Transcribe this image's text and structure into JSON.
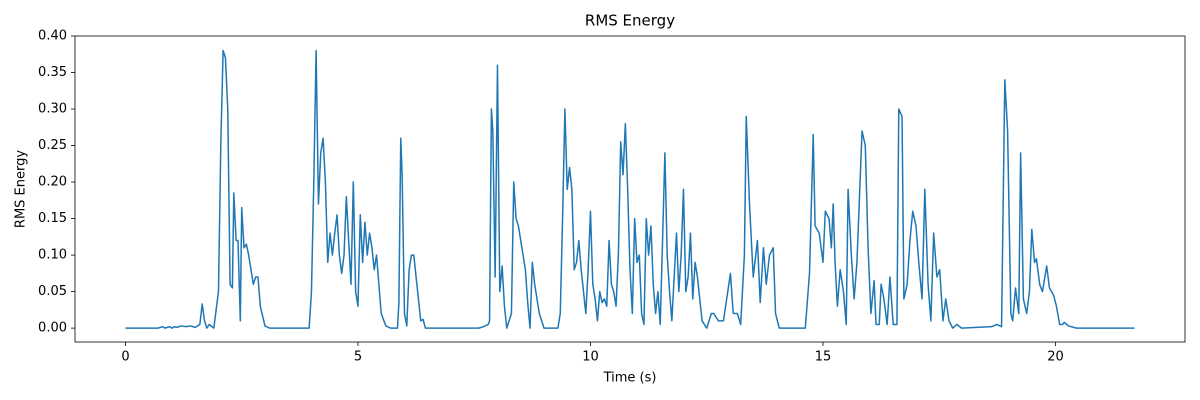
{
  "chart_data": {
    "type": "line",
    "title": "RMS Energy",
    "xlabel": "Time (s)",
    "ylabel": "RMS Energy",
    "color": "#1f77b4",
    "x": [
      0,
      0.7,
      0.8,
      0.85,
      0.95,
      1.0,
      1.05,
      1.1,
      1.2,
      1.3,
      1.4,
      1.5,
      1.6,
      1.65,
      1.7,
      1.75,
      1.8,
      1.9,
      2.0,
      2.05,
      2.1,
      2.15,
      2.2,
      2.25,
      2.3,
      2.33,
      2.38,
      2.42,
      2.47,
      2.5,
      2.55,
      2.6,
      2.65,
      2.7,
      2.75,
      2.8,
      2.85,
      2.9,
      3.0,
      3.1,
      3.95,
      4.0,
      4.05,
      4.1,
      4.15,
      4.2,
      4.25,
      4.3,
      4.35,
      4.4,
      4.45,
      4.5,
      4.55,
      4.6,
      4.65,
      4.7,
      4.75,
      4.8,
      4.85,
      4.9,
      4.95,
      5.0,
      5.05,
      5.1,
      5.15,
      5.2,
      5.25,
      5.3,
      5.35,
      5.4,
      5.45,
      5.5,
      5.6,
      5.7,
      5.85,
      5.88,
      5.92,
      5.95,
      6.0,
      6.05,
      6.1,
      6.15,
      6.2,
      6.25,
      6.3,
      6.35,
      6.4,
      6.45,
      7.6,
      7.7,
      7.8,
      7.83,
      7.87,
      7.9,
      7.95,
      8.0,
      8.05,
      8.1,
      8.15,
      8.2,
      8.3,
      8.35,
      8.4,
      8.45,
      8.5,
      8.55,
      8.6,
      8.65,
      8.7,
      8.75,
      8.8,
      8.9,
      9.0,
      9.3,
      9.35,
      9.4,
      9.45,
      9.5,
      9.55,
      9.6,
      9.65,
      9.7,
      9.75,
      9.8,
      9.85,
      9.9,
      9.95,
      10.0,
      10.05,
      10.1,
      10.15,
      10.2,
      10.25,
      10.3,
      10.35,
      10.4,
      10.45,
      10.5,
      10.55,
      10.6,
      10.65,
      10.7,
      10.75,
      10.8,
      10.85,
      10.9,
      10.95,
      11.0,
      11.05,
      11.1,
      11.15,
      11.2,
      11.25,
      11.3,
      11.35,
      11.4,
      11.45,
      11.5,
      11.55,
      11.6,
      11.65,
      11.7,
      11.75,
      11.8,
      11.85,
      11.9,
      11.95,
      12.0,
      12.05,
      12.1,
      12.15,
      12.2,
      12.25,
      12.3,
      12.35,
      12.4,
      12.5,
      12.6,
      12.65,
      12.75,
      12.86,
      13.01,
      13.07,
      13.16,
      13.23,
      13.31,
      13.35,
      13.42,
      13.5,
      13.59,
      13.65,
      13.72,
      13.78,
      13.85,
      13.93,
      13.98,
      14.06,
      14.62,
      14.71,
      14.79,
      14.83,
      14.92,
      15.0,
      15.05,
      15.13,
      15.18,
      15.22,
      15.26,
      15.31,
      15.37,
      15.44,
      15.5,
      15.54,
      15.61,
      15.67,
      15.73,
      15.84,
      15.91,
      15.97,
      16.03,
      16.1,
      16.14,
      16.21,
      16.25,
      16.31,
      16.38,
      16.44,
      16.51,
      16.59,
      16.63,
      16.7,
      16.74,
      16.81,
      16.87,
      16.93,
      17.0,
      17.06,
      17.13,
      17.19,
      17.26,
      17.32,
      17.38,
      17.45,
      17.51,
      17.58,
      17.64,
      17.71,
      17.79,
      17.88,
      17.98,
      18.63,
      18.74,
      18.84,
      18.91,
      18.97,
      19.04,
      19.08,
      19.14,
      19.21,
      19.25,
      19.31,
      19.38,
      19.44,
      19.49,
      19.55,
      19.59,
      19.66,
      19.72,
      19.81,
      19.87,
      19.96,
      20.02,
      20.09,
      20.15,
      20.19,
      20.28,
      20.45,
      21.7
    ],
    "values": [
      0,
      0,
      0.002,
      0,
      0.002,
      0,
      0.002,
      0.001,
      0.003,
      0.002,
      0.003,
      0.001,
      0.005,
      0.033,
      0.01,
      0,
      0.005,
      0,
      0.05,
      0.25,
      0.38,
      0.37,
      0.3,
      0.06,
      0.055,
      0.185,
      0.12,
      0.12,
      0.01,
      0.165,
      0.11,
      0.115,
      0.1,
      0.08,
      0.06,
      0.07,
      0.07,
      0.03,
      0.003,
      0,
      0,
      0.05,
      0.2,
      0.38,
      0.17,
      0.24,
      0.26,
      0.2,
      0.09,
      0.13,
      0.1,
      0.13,
      0.155,
      0.1,
      0.075,
      0.1,
      0.18,
      0.12,
      0.06,
      0.2,
      0.05,
      0.03,
      0.155,
      0.09,
      0.145,
      0.1,
      0.13,
      0.11,
      0.08,
      0.1,
      0.06,
      0.02,
      0.003,
      0,
      0,
      0.035,
      0.26,
      0.21,
      0.02,
      0.003,
      0.08,
      0.1,
      0.1,
      0.07,
      0.04,
      0.01,
      0.012,
      0,
      0,
      0.002,
      0.005,
      0.01,
      0.3,
      0.27,
      0.07,
      0.36,
      0.05,
      0.085,
      0.03,
      0,
      0.02,
      0.2,
      0.15,
      0.14,
      0.12,
      0.1,
      0.08,
      0.035,
      0,
      0.09,
      0.06,
      0.02,
      0,
      0,
      0.02,
      0.15,
      0.3,
      0.19,
      0.22,
      0.19,
      0.08,
      0.09,
      0.12,
      0.08,
      0.05,
      0.02,
      0.08,
      0.16,
      0.06,
      0.04,
      0.01,
      0.05,
      0.035,
      0.04,
      0.03,
      0.12,
      0.06,
      0.05,
      0.03,
      0.1,
      0.255,
      0.21,
      0.28,
      0.19,
      0.08,
      0.02,
      0.15,
      0.09,
      0.1,
      0.02,
      0.005,
      0.15,
      0.1,
      0.14,
      0.06,
      0.02,
      0.05,
      0.005,
      0.12,
      0.24,
      0.1,
      0.05,
      0.01,
      0.07,
      0.13,
      0.05,
      0.1,
      0.19,
      0.05,
      0.07,
      0.13,
      0.04,
      0.09,
      0.07,
      0.04,
      0.01,
      0,
      0.02,
      0.02,
      0.01,
      0.01,
      0.075,
      0.02,
      0.02,
      0.005,
      0.1,
      0.29,
      0.17,
      0.07,
      0.12,
      0.035,
      0.11,
      0.06,
      0.1,
      0.11,
      0.02,
      0,
      0,
      0.075,
      0.265,
      0.14,
      0.13,
      0.09,
      0.16,
      0.15,
      0.11,
      0.17,
      0.09,
      0.03,
      0.08,
      0.05,
      0.005,
      0.19,
      0.1,
      0.04,
      0.09,
      0.27,
      0.25,
      0.11,
      0.02,
      0.065,
      0.005,
      0.005,
      0.06,
      0.04,
      0.005,
      0.07,
      0.005,
      0.005,
      0.3,
      0.29,
      0.04,
      0.06,
      0.12,
      0.16,
      0.14,
      0.09,
      0.04,
      0.19,
      0.06,
      0.01,
      0.13,
      0.07,
      0.08,
      0.01,
      0.04,
      0.01,
      0,
      0.005,
      0,
      0.002,
      0.005,
      0.002,
      0.34,
      0.27,
      0.02,
      0.01,
      0.055,
      0.02,
      0.24,
      0.04,
      0.02,
      0.05,
      0.135,
      0.09,
      0.095,
      0.06,
      0.05,
      0.085,
      0.055,
      0.045,
      0.03,
      0.005,
      0.005,
      0.008,
      0.003,
      0,
      0
    ],
    "xlim": [
      -1.085,
      22.785
    ],
    "ylim": [
      -0.019,
      0.4
    ],
    "xticks": [
      0,
      5,
      10,
      15,
      20
    ],
    "yticks": [
      {
        "value": 0,
        "label": "0.00"
      },
      {
        "value": 0.05,
        "label": "0.05"
      },
      {
        "value": 0.1,
        "label": "0.10"
      },
      {
        "value": 0.15,
        "label": "0.15"
      },
      {
        "value": 0.2,
        "label": "0.20"
      },
      {
        "value": 0.25,
        "label": "0.25"
      },
      {
        "value": 0.3,
        "label": "0.30"
      },
      {
        "value": 0.35,
        "label": "0.35"
      },
      {
        "value": 0.4,
        "label": "0.40"
      }
    ]
  }
}
